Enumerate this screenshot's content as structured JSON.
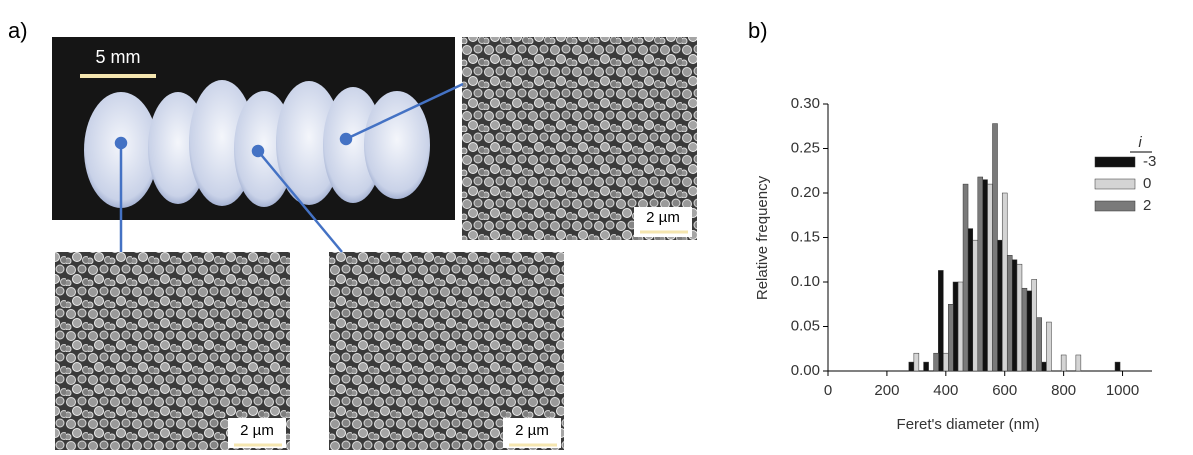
{
  "panel_labels": [
    "a)",
    "b)"
  ],
  "scale_bars": [
    "5 mm",
    "2 µm",
    "2 µm",
    "2 µm"
  ],
  "chart_data": {
    "type": "bar",
    "xlabel": "Feret's diameter (nm)",
    "ylabel": "Relative frequency",
    "legend_title": "i",
    "legend_position": "upper right",
    "x": [
      300,
      350,
      400,
      450,
      500,
      550,
      600,
      650,
      700,
      750,
      800,
      850,
      1000
    ],
    "series": [
      {
        "name": "-3",
        "color": "#111111",
        "values": [
          0.01,
          0.01,
          0.113,
          0.1,
          0.16,
          0.215,
          0.147,
          0.125,
          0.09,
          0.01,
          0,
          0,
          0.01
        ]
      },
      {
        "name": "0",
        "color": "#d4d4d4",
        "values": [
          0.02,
          0,
          0.02,
          0.1,
          0.147,
          0.21,
          0.2,
          0.12,
          0.103,
          0.055,
          0.018,
          0.018,
          0
        ]
      },
      {
        "name": "2",
        "color": "#7a7a7a",
        "values": [
          0,
          0.02,
          0.075,
          0.21,
          0.218,
          0.278,
          0.13,
          0.093,
          0.06,
          0,
          0,
          0,
          0
        ]
      }
    ],
    "xlim": [
      0,
      1100
    ],
    "xticks": [
      0,
      200,
      400,
      600,
      800,
      1000
    ],
    "ylim": [
      0,
      0.3
    ],
    "yticks": [
      {
        "value": 0,
        "label": "0.00"
      },
      {
        "value": 0.05,
        "label": "0.05"
      },
      {
        "value": 0.1,
        "label": "0.10"
      },
      {
        "value": 0.15,
        "label": "0.15"
      },
      {
        "value": 0.2,
        "label": "0.20"
      },
      {
        "value": 0.25,
        "label": "0.25"
      },
      {
        "value": 0.3,
        "label": "0.30"
      }
    ]
  }
}
